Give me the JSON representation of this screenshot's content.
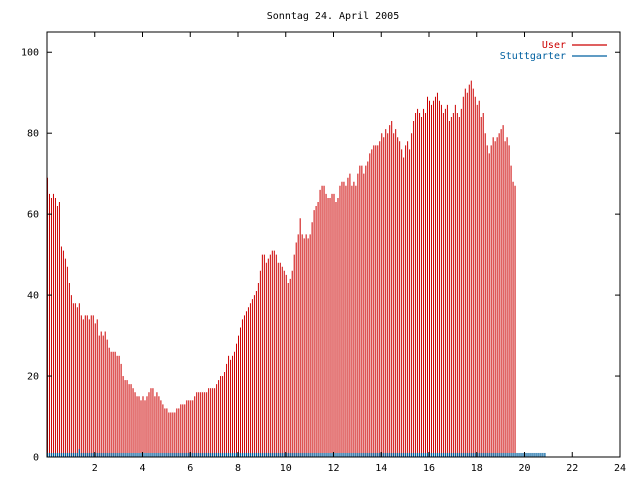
{
  "chart_data": {
    "type": "bar",
    "title": "Sonntag 24. April 2005",
    "xlabel": "",
    "ylabel": "",
    "xlim": [
      0,
      24
    ],
    "ylim": [
      0,
      105
    ],
    "x_ticks": [
      2,
      4,
      6,
      8,
      10,
      12,
      14,
      16,
      18,
      20,
      22,
      24
    ],
    "x_tick_labels": [
      "2",
      "4",
      "6",
      "8",
      "10",
      "12",
      "14",
      "16",
      "18",
      "20",
      "22",
      "24"
    ],
    "y_ticks": [
      0,
      20,
      40,
      60,
      80,
      100
    ],
    "y_tick_labels": [
      "0",
      "20",
      "40",
      "60",
      "80",
      "100"
    ],
    "legend_position": "top-right",
    "grid": false,
    "bar_interval_minutes": 5,
    "series": [
      {
        "name": "User",
        "color": "#cc0000",
        "style": "impulses",
        "values": [
          69,
          65,
          64,
          65,
          64,
          62,
          63,
          52,
          51,
          49,
          47,
          43,
          40,
          38,
          38,
          37,
          38,
          35,
          34,
          35,
          35,
          34,
          35,
          35,
          33,
          34,
          30,
          31,
          30,
          31,
          29,
          27,
          26,
          26,
          26,
          25,
          25,
          23,
          20,
          19,
          19,
          18,
          18,
          17,
          16,
          15,
          15,
          14,
          15,
          14,
          15,
          16,
          17,
          17,
          15,
          16,
          15,
          14,
          13,
          12,
          12,
          11,
          11,
          11,
          11,
          12,
          12,
          13,
          13,
          13,
          14,
          14,
          14,
          14,
          15,
          16,
          16,
          16,
          16,
          16,
          16,
          17,
          17,
          17,
          17,
          18,
          19,
          20,
          20,
          21,
          23,
          25,
          24,
          25,
          26,
          28,
          30,
          32,
          34,
          35,
          36,
          37,
          38,
          39,
          40,
          41,
          43,
          46,
          50,
          50,
          48,
          49,
          50,
          51,
          51,
          50,
          48,
          48,
          47,
          46,
          45,
          43,
          44,
          46,
          50,
          53,
          55,
          59,
          55,
          54,
          55,
          54,
          55,
          58,
          61,
          62,
          63,
          66,
          67,
          67,
          65,
          64,
          64,
          65,
          65,
          63,
          64,
          67,
          68,
          68,
          67,
          69,
          70,
          67,
          68,
          67,
          70,
          72,
          72,
          70,
          72,
          73,
          75,
          76,
          77,
          77,
          77,
          78,
          80,
          79,
          81,
          80,
          82,
          83,
          80,
          81,
          79,
          78,
          76,
          74,
          77,
          78,
          76,
          80,
          83,
          85,
          86,
          85,
          84,
          86,
          85,
          89,
          88,
          87,
          88,
          89,
          90,
          88,
          87,
          85,
          86,
          87,
          83,
          84,
          85,
          87,
          85,
          84,
          86,
          89,
          91,
          90,
          92,
          93,
          91,
          89,
          87,
          88,
          84,
          85,
          80,
          77,
          75,
          77,
          79,
          78,
          79,
          80,
          81,
          82,
          78,
          79,
          77,
          72,
          68,
          67
        ]
      },
      {
        "name": "Stuttgarter",
        "color": "#0060a0",
        "style": "impulses",
        "values": [
          1,
          1,
          1,
          1,
          1,
          1,
          1,
          1,
          1,
          1,
          1,
          1,
          1,
          1,
          1,
          1,
          2,
          1,
          1,
          1,
          1,
          1,
          1,
          1,
          1,
          1,
          1,
          1,
          1,
          1,
          1,
          1,
          1,
          1,
          1,
          1,
          1,
          1,
          1,
          1,
          1,
          1,
          1,
          1,
          1,
          1,
          1,
          1,
          1,
          1,
          1,
          1,
          1,
          1,
          1,
          1,
          1,
          1,
          1,
          1,
          1,
          1,
          1,
          1,
          1,
          1,
          1,
          1,
          1,
          1,
          1,
          1,
          1,
          1,
          1,
          1,
          1,
          1,
          1,
          1,
          1,
          1,
          1,
          1,
          1,
          1,
          1,
          1,
          1,
          1,
          1,
          1,
          1,
          1,
          1,
          1,
          1,
          1,
          1,
          1,
          1,
          1,
          1,
          1,
          1,
          1,
          1,
          1,
          1,
          1,
          1,
          1,
          1,
          1,
          1,
          1,
          1,
          1,
          1,
          1,
          1,
          1,
          1,
          1,
          1,
          1,
          1,
          1,
          1,
          1,
          1,
          1,
          1,
          1,
          1,
          1,
          1,
          1,
          1,
          1,
          1,
          1,
          1,
          1,
          1,
          1,
          1,
          1,
          1,
          1,
          1,
          1,
          1,
          1,
          1,
          1,
          1,
          1,
          1,
          1,
          1,
          1,
          1,
          1,
          1,
          1,
          1,
          1,
          1,
          1,
          1,
          1,
          1,
          1,
          1,
          1,
          1,
          1,
          1,
          1,
          1,
          1,
          1,
          1,
          1,
          1,
          1,
          1,
          1,
          1,
          1,
          1,
          1,
          1,
          1,
          1,
          1,
          1,
          1,
          1,
          1,
          1,
          1,
          1,
          1,
          1,
          1,
          1,
          1,
          1,
          1,
          1,
          1,
          1,
          1,
          1,
          1,
          1,
          1,
          1,
          1,
          1,
          1,
          1,
          1,
          1,
          1,
          1,
          1,
          1,
          1,
          1,
          1,
          1,
          1,
          1,
          1,
          1,
          1,
          1,
          1,
          1,
          1,
          1,
          1,
          1,
          1,
          1,
          1,
          1,
          1
        ]
      }
    ]
  }
}
